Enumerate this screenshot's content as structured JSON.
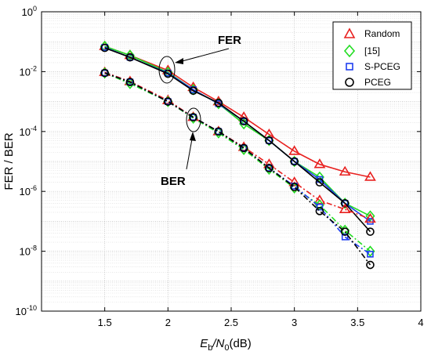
{
  "chart_data": {
    "type": "line",
    "xlabel_main": "E",
    "xlabel_sub1": "b",
    "xlabel_mid": "/N",
    "xlabel_sub2": "0",
    "xlabel_unit": "(dB)",
    "ylabel": "FER / BER",
    "xlim": [
      1,
      4
    ],
    "ylim": [
      1e-10,
      1
    ],
    "yscale": "log",
    "grid": true,
    "legend_position": "top-right",
    "xticks": [
      "1.5",
      "2",
      "2.5",
      "3",
      "3.5",
      "4"
    ],
    "yticks": [
      {
        "base": "10",
        "exp": "0"
      },
      {
        "base": "10",
        "exp": "-2"
      },
      {
        "base": "10",
        "exp": "-4"
      },
      {
        "base": "10",
        "exp": "-6"
      },
      {
        "base": "10",
        "exp": "-8"
      },
      {
        "base": "10",
        "exp": "-10"
      }
    ],
    "annotations": [
      {
        "text": "FER",
        "points_to": [
          2.0,
          0.01
        ]
      },
      {
        "text": "BER",
        "points_to": [
          2.2,
          0.0003
        ]
      }
    ],
    "x": [
      1.5,
      1.7,
      2.0,
      2.2,
      2.4,
      2.6,
      2.8,
      3.0,
      3.2,
      3.4,
      3.6
    ],
    "series": [
      {
        "name": "Random",
        "color": "#e8201f",
        "marker": "triangle",
        "metric": "FER",
        "values": [
          0.07,
          0.035,
          0.011,
          0.003,
          0.001,
          0.0003,
          8e-05,
          2.2e-05,
          8e-06,
          4.5e-06,
          3e-06
        ]
      },
      {
        "name": "[15]",
        "color": "#22dd22",
        "marker": "diamond",
        "metric": "FER",
        "values": [
          0.07,
          0.035,
          0.0095,
          0.0025,
          0.00085,
          0.00018,
          5e-05,
          1e-05,
          3e-06,
          4e-07,
          1.5e-07
        ]
      },
      {
        "name": "S-PCEG",
        "color": "#1f3ff0",
        "marker": "square",
        "metric": "FER",
        "values": [
          0.065,
          0.03,
          0.009,
          0.0025,
          0.00085,
          0.00022,
          5e-05,
          1e-05,
          2.5e-06,
          4e-07,
          1e-07
        ]
      },
      {
        "name": "PCEG",
        "color": "#000000",
        "marker": "circle",
        "metric": "FER",
        "values": [
          0.062,
          0.03,
          0.0085,
          0.0023,
          0.0009,
          0.00022,
          5e-05,
          1e-05,
          2e-06,
          4e-07,
          4.5e-08
        ]
      },
      {
        "name": "Random",
        "color": "#e8201f",
        "marker": "triangle",
        "metric": "BER",
        "values": [
          0.0095,
          0.0047,
          0.0011,
          0.0003,
          0.0001,
          3e-05,
          8e-06,
          2e-06,
          5e-07,
          2.5e-07,
          1.2e-07
        ]
      },
      {
        "name": "[15]",
        "color": "#22dd22",
        "marker": "diamond",
        "metric": "BER",
        "values": [
          0.009,
          0.004,
          0.001,
          0.00028,
          9e-05,
          2.5e-05,
          5.5e-06,
          1.3e-06,
          3.5e-07,
          5e-08,
          1e-08
        ]
      },
      {
        "name": "S-PCEG",
        "color": "#1f3ff0",
        "marker": "square",
        "metric": "BER",
        "values": [
          0.009,
          0.0045,
          0.001,
          0.0003,
          0.0001,
          2.8e-05,
          6e-06,
          1.5e-06,
          3e-07,
          3e-08,
          8e-09
        ]
      },
      {
        "name": "PCEG",
        "color": "#000000",
        "marker": "circle",
        "metric": "BER",
        "values": [
          0.009,
          0.0045,
          0.001,
          0.0003,
          0.0001,
          2.8e-05,
          6e-06,
          1.4e-06,
          2.2e-07,
          4.5e-08,
          3.5e-09
        ]
      }
    ]
  }
}
